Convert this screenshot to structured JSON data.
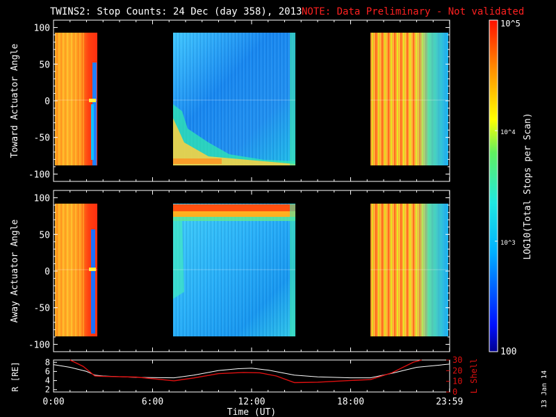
{
  "header": {
    "title": "TWINS2: Stop Counts: 24 Dec (day 358), 2013",
    "note": "NOTE: Data Preliminary - Not validated"
  },
  "stamp": "13 Jan 14",
  "colorbar": {
    "label": "LOG10(Total Stops per Scan)",
    "ticks": [
      "10^5",
      "10^4",
      "10^3",
      "100"
    ],
    "scale": "log",
    "range": [
      100,
      100000
    ],
    "colormap": "rainbow (blue → cyan → green → yellow → red)"
  },
  "colors": {
    "background": "#000000",
    "note_text": "#ff2020",
    "r_line": "#ffffff",
    "lshell_line": "#e01010",
    "axes": "#ffffff"
  },
  "chart_data": [
    {
      "type": "heatmap",
      "title": "",
      "xlabel": "",
      "ylabel": "Toward Actuator Angle",
      "xlim": [
        0,
        24
      ],
      "ylim": [
        -110,
        110
      ],
      "yticks": [
        "100",
        "50",
        "0",
        "-50",
        "-100"
      ],
      "x_ticks": [
        "0:00",
        "6:00",
        "12:00",
        "18:00",
        "23:59"
      ],
      "data_blocks": [
        {
          "start_hour": 0.0,
          "end_hour": 2.5,
          "level_log10": 4.4,
          "angle_range": [
            -88,
            88
          ]
        },
        {
          "start_hour": 7.3,
          "end_hour": 14.6,
          "level_log10": 3.1,
          "angle_range": [
            -88,
            88
          ]
        },
        {
          "start_hour": 19.2,
          "end_hour": 24.0,
          "level_log10": 4.0,
          "angle_range": [
            -88,
            88
          ]
        }
      ]
    },
    {
      "type": "heatmap",
      "title": "",
      "xlabel": "",
      "ylabel": "Away Actuator Angle",
      "xlim": [
        0,
        24
      ],
      "ylim": [
        -110,
        110
      ],
      "yticks": [
        "100",
        "50",
        "0",
        "-50",
        "-100"
      ],
      "x_ticks": [
        "0:00",
        "6:00",
        "12:00",
        "18:00",
        "23:59"
      ],
      "data_blocks": [
        {
          "start_hour": 0.0,
          "end_hour": 2.5,
          "level_log10": 4.4,
          "angle_range": [
            -88,
            88
          ]
        },
        {
          "start_hour": 7.3,
          "end_hour": 14.6,
          "level_log10": 3.2,
          "angle_range": [
            -88,
            88
          ]
        },
        {
          "start_hour": 19.2,
          "end_hour": 24.0,
          "level_log10": 4.0,
          "angle_range": [
            -88,
            88
          ]
        }
      ]
    },
    {
      "type": "line",
      "title": "",
      "xlabel": "Time (UT)",
      "x_ticks": [
        "0:00",
        "6:00",
        "12:00",
        "18:00",
        "23:59"
      ],
      "xlim": [
        0,
        24
      ],
      "ylabel_left": "R [RE]",
      "ylim_left": [
        1.5,
        8.5
      ],
      "yticks_left": [
        "2",
        "4",
        "6",
        "8"
      ],
      "ylabel_right": "L Shell",
      "ylim_right": [
        0,
        30
      ],
      "yticks_right": [
        "0",
        "10",
        "20",
        "30"
      ],
      "series": [
        {
          "name": "R [RE]",
          "axis": "left",
          "x": [
            0,
            1,
            2,
            2.5,
            3,
            5,
            7.3,
            8.5,
            10,
            11.2,
            12,
            13,
            14.6,
            16,
            18,
            19.2,
            20.5,
            22,
            23.99
          ],
          "y": [
            7.5,
            6.9,
            6.0,
            5.2,
            5.0,
            4.7,
            4.6,
            5.2,
            6.2,
            6.6,
            6.7,
            6.3,
            5.2,
            4.8,
            4.6,
            4.6,
            5.6,
            6.9,
            7.6
          ]
        },
        {
          "name": "L Shell",
          "axis": "right",
          "x": [
            1,
            1.8,
            2.5,
            3,
            5,
            7.3,
            8.5,
            10,
            11.5,
            12.5,
            13.5,
            14.6,
            16,
            18,
            19.2,
            20.5,
            21.8,
            22.3
          ],
          "y": [
            32,
            24,
            15,
            14.6,
            14.0,
            10.5,
            13.2,
            17.2,
            18.3,
            18.0,
            15.0,
            8.8,
            9.2,
            10.8,
            11.6,
            18.0,
            28.0,
            32
          ]
        }
      ]
    }
  ]
}
